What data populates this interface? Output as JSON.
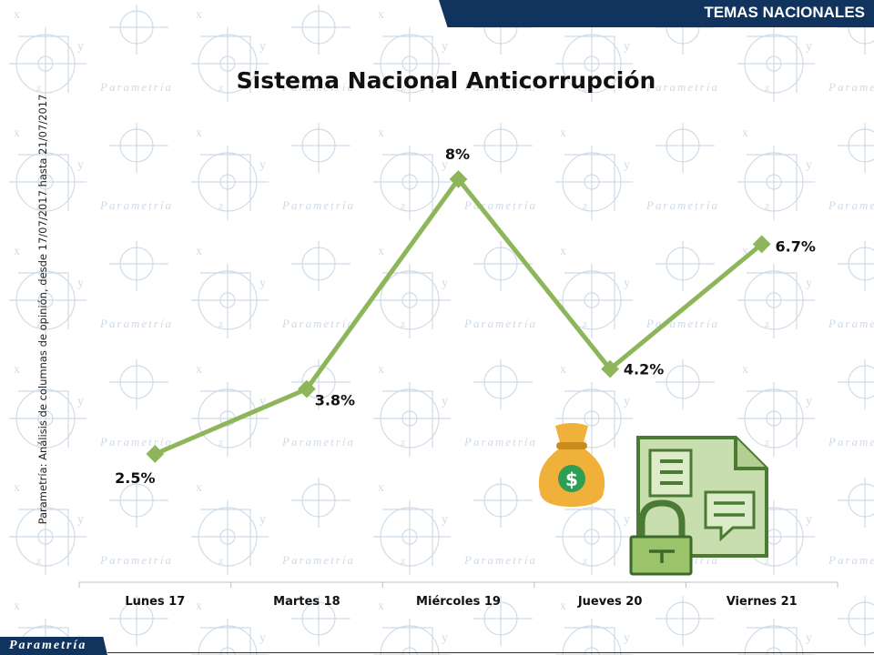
{
  "header": {
    "section_label": "TEMAS NACIONALES"
  },
  "source_note": "Parametría: Análisis de columnas de opinión, desde 17/07/2017 hasta 21/07/2017",
  "footer": {
    "brand": "Parametría"
  },
  "background": {
    "watermark_text": "Parametría"
  },
  "colors": {
    "line": "#8db65a",
    "header_bg": "#10345e",
    "icon_green": "#9bc46a",
    "icon_dark": "#3d6a2a",
    "bag_gold": "#f0b13a"
  },
  "icons": [
    "money-bag-icon",
    "locked-document-icon"
  ],
  "chart_data": {
    "type": "line",
    "title": "Sistema Nacional Anticorrupción",
    "categories": [
      "Lunes 17",
      "Martes 18",
      "Miércoles 19",
      "Jueves 20",
      "Viernes 21"
    ],
    "values": [
      2.5,
      3.8,
      8,
      4.2,
      6.7
    ],
    "value_labels": [
      "2.5%",
      "3.8%",
      "8%",
      "4.2%",
      "6.7%"
    ],
    "xlabel": "",
    "ylabel": "",
    "grid": false,
    "legend": "none"
  }
}
